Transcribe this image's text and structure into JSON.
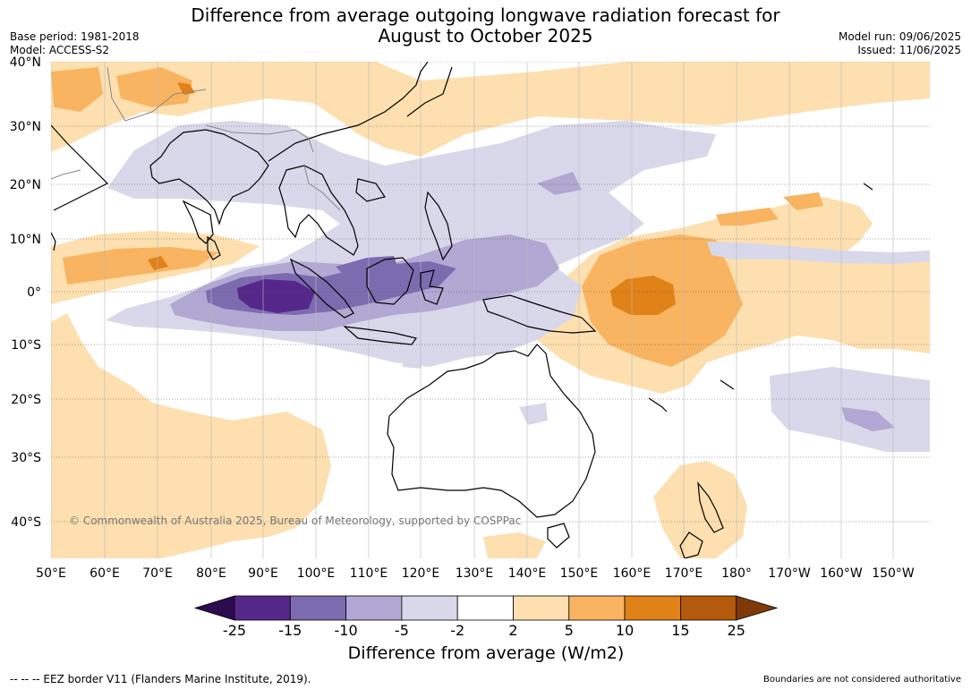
{
  "header": {
    "title_line1": "Difference from average outgoing longwave radiation forecast for",
    "title_line2": "August to October 2025",
    "base_period": "Base period: 1981-2018",
    "model": "Model: ACCESS-S2",
    "model_run": "Model run: 09/06/2025",
    "issued": "Issued: 11/06/2025"
  },
  "map": {
    "lat_labels": [
      "40°N",
      "30°N",
      "20°N",
      "10°N",
      "0°",
      "10°S",
      "20°S",
      "30°S",
      "40°S"
    ],
    "lon_labels": [
      "50°E",
      "60°E",
      "70°E",
      "80°E",
      "90°E",
      "100°E",
      "110°E",
      "120°E",
      "130°E",
      "140°E",
      "150°E",
      "160°E",
      "170°E",
      "180°",
      "170°W",
      "160°W",
      "150°W"
    ],
    "copyright": "© Commonwealth of Australia 2025, Bureau of Meteorology, supported by COSPPac",
    "fill_colors": {
      "neg25": "#2d0b4e",
      "neg15": "#56278a",
      "neg10": "#7d6bb0",
      "neg5": "#b1a8d3",
      "neg2": "#d8d8ea",
      "zero": "#ffffff",
      "pos2": "#fddfb0",
      "pos5": "#f9b461",
      "pos10": "#e08218",
      "pos15": "#b5590c",
      "pos25": "#7f3a08"
    }
  },
  "colorbar": {
    "ticks": [
      "-25",
      "-15",
      "-10",
      "-5",
      "-2",
      "2",
      "5",
      "10",
      "15",
      "25"
    ],
    "title": "Difference from average (W/m2)"
  },
  "footer": {
    "eez": "--  --  -- EEZ border V11 (Flanders Marine Institute, 2019).",
    "boundaries": "Boundaries are not considered authoritative"
  }
}
